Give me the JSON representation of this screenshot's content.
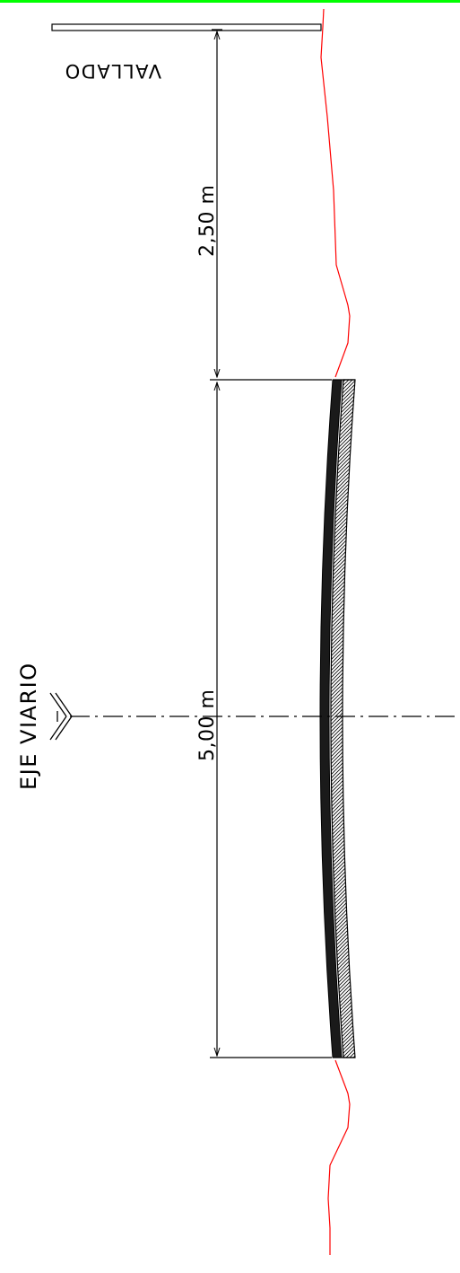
{
  "drawing": {
    "labels": {
      "fence": "VALLADO",
      "road_axis": "EJE VIARIO",
      "dim_shoulder": "2,50  m",
      "dim_road": "5,00  m"
    },
    "colors": {
      "frame_top": "#00ff00",
      "terrain": "#ff0000",
      "ink": "#000000",
      "background": "#ffffff"
    },
    "icons": {
      "axis_symbol": "road-axis-symbol-icon"
    }
  }
}
